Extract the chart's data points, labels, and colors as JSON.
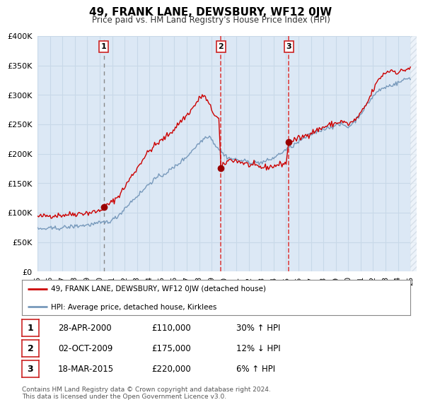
{
  "title": "49, FRANK LANE, DEWSBURY, WF12 0JW",
  "subtitle": "Price paid vs. HM Land Registry's House Price Index (HPI)",
  "ylim": [
    0,
    400000
  ],
  "yticks": [
    0,
    50000,
    100000,
    150000,
    200000,
    250000,
    300000,
    350000,
    400000
  ],
  "xlim_start": 1995.0,
  "xlim_end": 2025.5,
  "xtick_years": [
    1995,
    1996,
    1997,
    1998,
    1999,
    2000,
    2001,
    2002,
    2003,
    2004,
    2005,
    2006,
    2007,
    2008,
    2009,
    2010,
    2011,
    2012,
    2013,
    2014,
    2015,
    2016,
    2017,
    2018,
    2019,
    2020,
    2021,
    2022,
    2023,
    2024,
    2025
  ],
  "grid_color": "#c8d8e8",
  "plot_bg_color": "#dce8f5",
  "hatch_color": "#c0ccd8",
  "red_line_color": "#cc0000",
  "blue_line_color": "#7799bb",
  "sale_marker_color": "#990000",
  "vline1_color": "#999999",
  "vline23_color": "#dd4444",
  "sale1_x": 2000.32,
  "sale1_y": 110000,
  "sale2_x": 2009.75,
  "sale2_y": 175000,
  "sale3_x": 2015.21,
  "sale3_y": 220000,
  "legend_label_red": "49, FRANK LANE, DEWSBURY, WF12 0JW (detached house)",
  "legend_label_blue": "HPI: Average price, detached house, Kirklees",
  "table_rows": [
    {
      "num": "1",
      "date": "28-APR-2000",
      "price": "£110,000",
      "hpi": "30% ↑ HPI"
    },
    {
      "num": "2",
      "date": "02-OCT-2009",
      "price": "£175,000",
      "hpi": "12% ↓ HPI"
    },
    {
      "num": "3",
      "date": "18-MAR-2015",
      "price": "£220,000",
      "hpi": "6% ↑ HPI"
    }
  ],
  "footnote1": "Contains HM Land Registry data © Crown copyright and database right 2024.",
  "footnote2": "This data is licensed under the Open Government Licence v3.0."
}
